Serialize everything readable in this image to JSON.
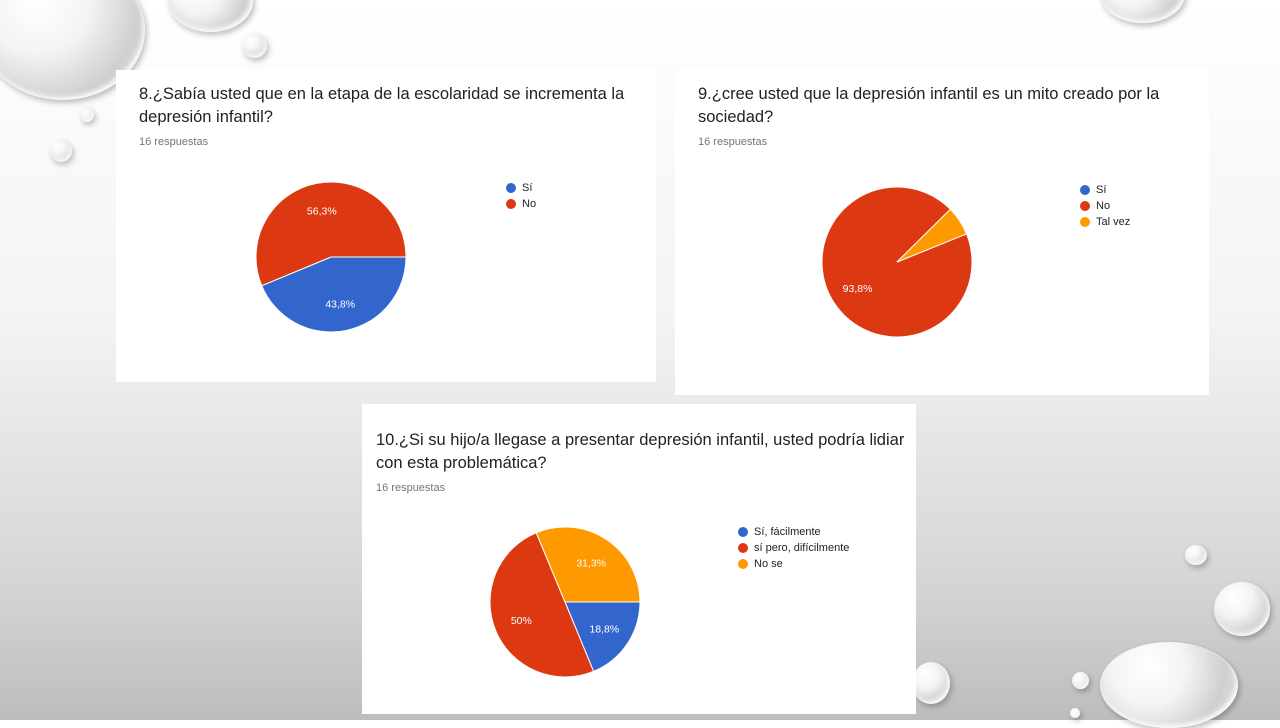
{
  "charts_meta": [
    {
      "title": "8.¿Sabía usted que en la etapa de la escolaridad se incrementa la depresión infantil?",
      "responses": "16 respuestas"
    },
    {
      "title": "9.¿cree usted que la depresión infantil es un mito creado por la sociedad?",
      "responses": "16 respuestas"
    },
    {
      "title": "10.¿Si su hijo/a llegase a presentar depresión infantil, usted podría lidiar con esta problemática?",
      "responses": "16 respuestas"
    }
  ],
  "colors": {
    "blue": "#3366cc",
    "red": "#dc3912",
    "orange": "#ff9900"
  },
  "chart_data": [
    {
      "type": "pie",
      "title": "8.¿Sabía usted que en la etapa de la escolaridad se incrementa la depresión infantil?",
      "categories": [
        "Sí",
        "No"
      ],
      "values": [
        43.8,
        56.3
      ],
      "labels": [
        "43,8%",
        "56,3%"
      ],
      "colors": [
        "#3366cc",
        "#dc3912"
      ],
      "legend": "right"
    },
    {
      "type": "pie",
      "title": "9.¿cree usted que la depresión infantil es un mito creado por la sociedad?",
      "categories": [
        "Sí",
        "No",
        "Tal vez"
      ],
      "values": [
        0,
        93.8,
        6.3
      ],
      "labels": [
        "",
        "93,8%",
        ""
      ],
      "colors": [
        "#3366cc",
        "#dc3912",
        "#ff9900"
      ],
      "legend": "right"
    },
    {
      "type": "pie",
      "title": "10.¿Si su hijo/a llegase a presentar depresión infantil, usted podría lidiar con esta problemática?",
      "categories": [
        "Sí, fácilmente",
        "sí pero, difícilmente",
        "No se"
      ],
      "values": [
        18.8,
        50,
        31.3
      ],
      "labels": [
        "18,8%",
        "50%",
        "31,3%"
      ],
      "colors": [
        "#3366cc",
        "#dc3912",
        "#ff9900"
      ],
      "legend": "right"
    }
  ]
}
